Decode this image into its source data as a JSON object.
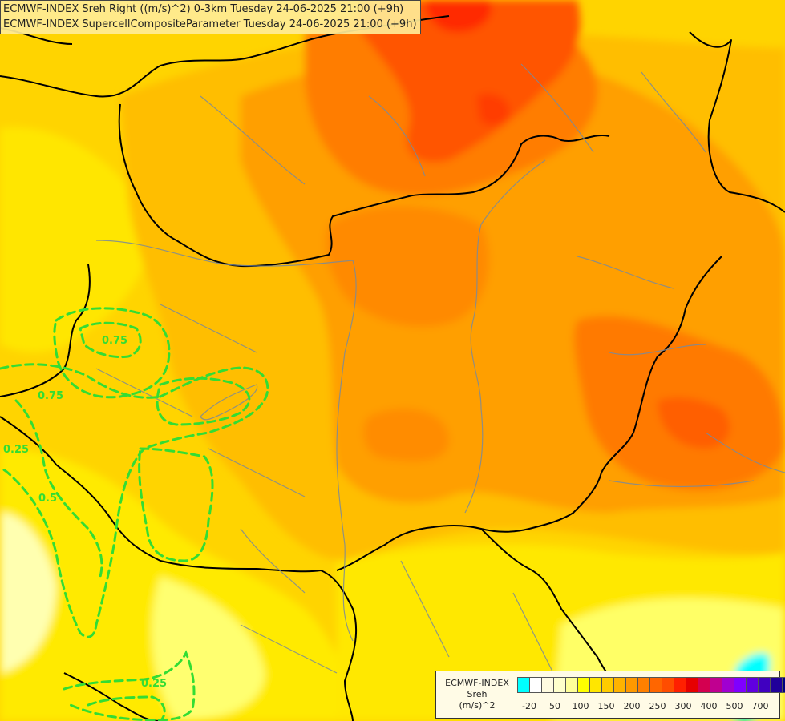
{
  "header": {
    "line1": "ECMWF-INDEX Sreh Right ((m/s)^2) 0-3km Tuesday 24-06-2025 21:00 (+9h)",
    "line2": "ECMWF-INDEX SupercellCompositeParameter Tuesday 24-06-2025 21:00 (+9h)"
  },
  "map": {
    "contour_labels": [
      "0.75",
      "0.75",
      "0.25",
      "0.5",
      "0.25"
    ]
  },
  "legend": {
    "title_line1": "ECMWF-INDEX",
    "title_line2": "Sreh",
    "title_line3": "(m/s)^2",
    "colors": [
      "#00ffff",
      "#ffffff",
      "#fffbe0",
      "#ffffcc",
      "#ffff99",
      "#ffff00",
      "#ffe600",
      "#ffcc00",
      "#ffb300",
      "#ff9900",
      "#ff8000",
      "#ff6600",
      "#ff4d00",
      "#ff2000",
      "#e60000",
      "#d40050",
      "#c00090",
      "#a000d0",
      "#7f00ff",
      "#6000e0",
      "#4000c0",
      "#20009a",
      "#000080"
    ],
    "ticks": [
      "-20",
      "50",
      "100",
      "150",
      "200",
      "250",
      "300",
      "400",
      "500",
      "700"
    ]
  }
}
